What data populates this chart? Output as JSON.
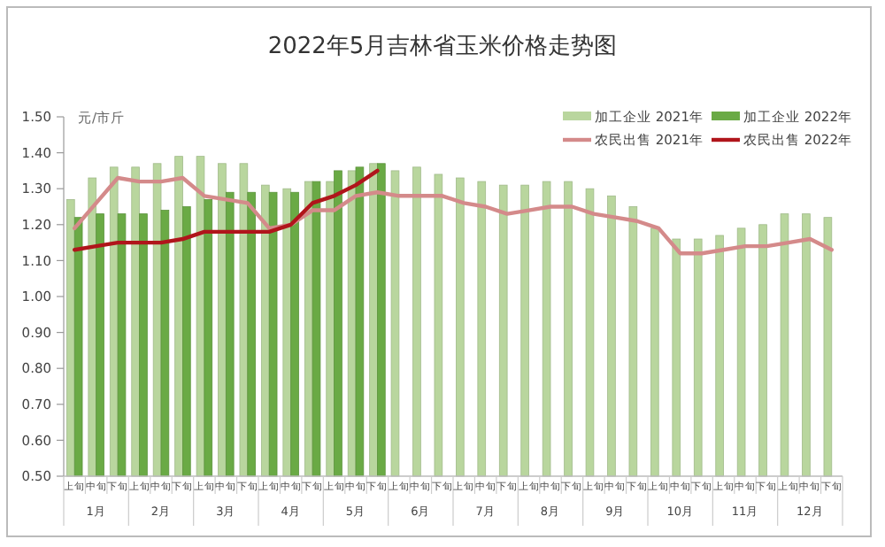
{
  "chart_data": {
    "type": "bar",
    "title": "2022年5月吉林省玉米价格走势图",
    "ylabel": "元/市斤",
    "categories": [
      "上旬",
      "中旬",
      "下旬",
      "上旬",
      "中旬",
      "下旬",
      "上旬",
      "中旬",
      "下旬",
      "上旬",
      "中旬",
      "下旬",
      "上旬",
      "中旬",
      "下旬",
      "上旬",
      "中旬",
      "下旬",
      "上旬",
      "中旬",
      "下旬",
      "上旬",
      "中旬",
      "下旬",
      "上旬",
      "中旬",
      "下旬",
      "上旬",
      "中旬",
      "下旬",
      "上旬",
      "中旬",
      "下旬",
      "上旬",
      "中旬",
      "下旬"
    ],
    "annotations": [
      "1月",
      "2月",
      "3月",
      "4月",
      "5月",
      "6月",
      "7月",
      "8月",
      "9月",
      "10月",
      "11月",
      "12月"
    ],
    "series": [
      {
        "name": "加工企业 2021年",
        "color": "#b9d69e",
        "values": [
          1.27,
          1.33,
          1.36,
          1.36,
          1.37,
          1.39,
          1.39,
          1.37,
          1.37,
          1.31,
          1.3,
          1.32,
          1.32,
          1.35,
          1.37,
          1.35,
          1.36,
          1.34,
          1.33,
          1.32,
          1.31,
          1.31,
          1.32,
          1.32,
          1.3,
          1.28,
          1.25,
          1.19,
          1.16,
          1.16,
          1.17,
          1.19,
          1.2,
          1.23,
          1.23,
          1.22
        ]
      },
      {
        "name": "加工企业 2022年",
        "color": "#6aaa45",
        "values": [
          1.22,
          1.23,
          1.23,
          1.23,
          1.24,
          1.25,
          1.27,
          1.29,
          1.29,
          1.29,
          1.29,
          1.32,
          1.35,
          1.36,
          1.37,
          null,
          null,
          null,
          null,
          null,
          null,
          null,
          null,
          null,
          null,
          null,
          null,
          null,
          null,
          null,
          null,
          null,
          null,
          null,
          null,
          null
        ]
      },
      {
        "name": "农民出售 2021年",
        "type": "line",
        "color": "#d48a8a",
        "values": [
          1.19,
          1.26,
          1.33,
          1.32,
          1.32,
          1.33,
          1.28,
          1.27,
          1.26,
          1.19,
          1.2,
          1.24,
          1.24,
          1.28,
          1.29,
          1.28,
          1.28,
          1.28,
          1.26,
          1.25,
          1.23,
          1.24,
          1.25,
          1.25,
          1.23,
          1.22,
          1.21,
          1.19,
          1.12,
          1.12,
          1.13,
          1.14,
          1.14,
          1.15,
          1.16,
          1.13
        ]
      },
      {
        "name": "农民出售 2022年",
        "type": "line",
        "color": "#b0151b",
        "values": [
          1.13,
          1.14,
          1.15,
          1.15,
          1.15,
          1.16,
          1.18,
          1.18,
          1.18,
          1.18,
          1.2,
          1.26,
          1.28,
          1.31,
          1.35,
          null,
          null,
          null,
          null,
          null,
          null,
          null,
          null,
          null,
          null,
          null,
          null,
          null,
          null,
          null,
          null,
          null,
          null,
          null,
          null,
          null
        ]
      }
    ],
    "ylim": [
      0.5,
      1.5
    ],
    "yticks": [
      {
        "value": 0.5,
        "label": "0.50"
      },
      {
        "value": 0.6,
        "label": "0.60"
      },
      {
        "value": 0.7,
        "label": "0.70"
      },
      {
        "value": 0.8,
        "label": "0.80"
      },
      {
        "value": 0.9,
        "label": "0.90"
      },
      {
        "value": 1.0,
        "label": "1.00"
      },
      {
        "value": 1.1,
        "label": "1.10"
      },
      {
        "value": 1.2,
        "label": "1.20"
      },
      {
        "value": 1.3,
        "label": "1.30"
      },
      {
        "value": 1.4,
        "label": "1.40"
      },
      {
        "value": 1.5,
        "label": "1.50"
      }
    ],
    "grid": false,
    "legend": "top right"
  }
}
